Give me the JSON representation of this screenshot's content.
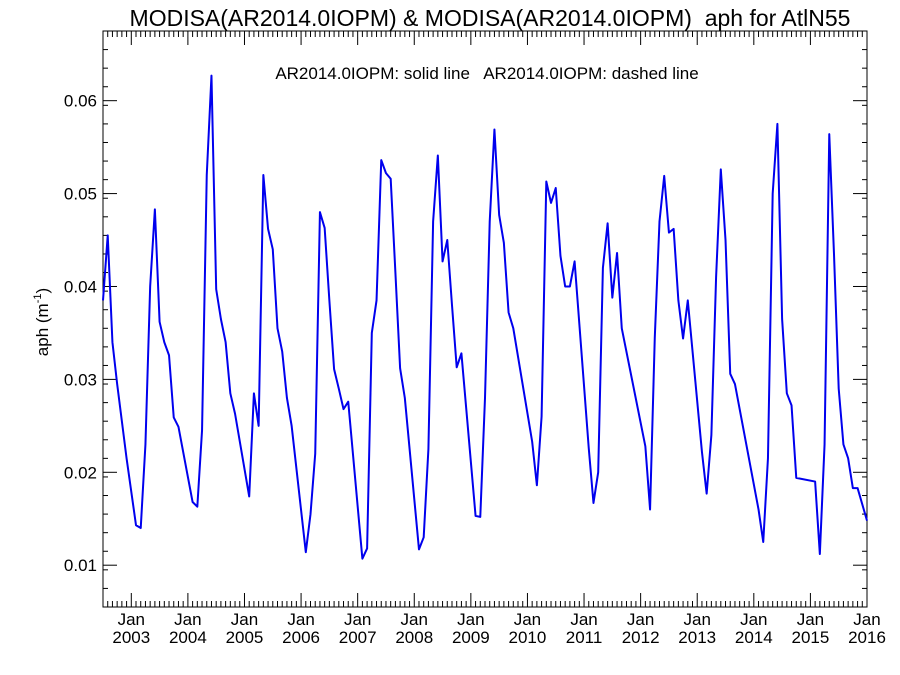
{
  "chart_data": {
    "type": "line",
    "title": "MODISA(AR2014.0IOPM) & MODISA(AR2014.0IOPM)  aph for AtlN55",
    "annotation": "AR2014.0IOPM: solid line   AR2014.0IOPM: dashed line",
    "ylabel": "aph (m",
    "ylabel_exponent": "-1",
    "ylabel_close": ")",
    "xlim": [
      "2002-07-01",
      "2016-01-01"
    ],
    "ylim": [
      0.0055,
      0.0675
    ],
    "yticks": [
      0.01,
      0.02,
      0.03,
      0.04,
      0.05,
      0.06
    ],
    "ytick_labels": [
      "0.01",
      "0.02",
      "0.03",
      "0.04",
      "0.05",
      "0.06"
    ],
    "xtick_month_label": "Jan",
    "xtick_year_labels": [
      "2003",
      "2004",
      "2005",
      "2006",
      "2007",
      "2008",
      "2009",
      "2010",
      "2011",
      "2012",
      "2013",
      "2014",
      "2015",
      "2016"
    ],
    "grid": false,
    "series_color": "#0000ee",
    "series": [
      {
        "name": "AR2014.0IOPM",
        "style": "solid",
        "points": [
          [
            "2002-07",
            0.0385
          ],
          [
            "2002-08",
            0.0455
          ],
          [
            "2002-09",
            0.034
          ],
          [
            "2002-10",
            0.0295
          ],
          [
            "2002-12",
            0.0215
          ],
          [
            "2003-02",
            0.0143
          ],
          [
            "2003-03",
            0.014
          ],
          [
            "2003-04",
            0.023
          ],
          [
            "2003-05",
            0.04
          ],
          [
            "2003-06",
            0.0483
          ],
          [
            "2003-07",
            0.0362
          ],
          [
            "2003-08",
            0.034
          ],
          [
            "2003-09",
            0.0326
          ],
          [
            "2003-10",
            0.0259
          ],
          [
            "2003-11",
            0.0249
          ],
          [
            "2004-02",
            0.0168
          ],
          [
            "2004-03",
            0.0163
          ],
          [
            "2004-04",
            0.0245
          ],
          [
            "2004-05",
            0.052
          ],
          [
            "2004-06",
            0.0627
          ],
          [
            "2004-07",
            0.0397
          ],
          [
            "2004-08",
            0.0365
          ],
          [
            "2004-09",
            0.034
          ],
          [
            "2004-10",
            0.0285
          ],
          [
            "2004-11",
            0.0263
          ],
          [
            "2005-02",
            0.0174
          ],
          [
            "2005-03",
            0.0285
          ],
          [
            "2005-04",
            0.025
          ],
          [
            "2005-05",
            0.052
          ],
          [
            "2005-06",
            0.0462
          ],
          [
            "2005-07",
            0.044
          ],
          [
            "2005-08",
            0.0355
          ],
          [
            "2005-09",
            0.033
          ],
          [
            "2005-10",
            0.028
          ],
          [
            "2005-11",
            0.025
          ],
          [
            "2006-02",
            0.0114
          ],
          [
            "2006-03",
            0.0155
          ],
          [
            "2006-04",
            0.022
          ],
          [
            "2006-05",
            0.048
          ],
          [
            "2006-06",
            0.0463
          ],
          [
            "2006-07",
            0.0385
          ],
          [
            "2006-08",
            0.0311
          ],
          [
            "2006-09",
            0.029
          ],
          [
            "2006-10",
            0.0268
          ],
          [
            "2006-11",
            0.0276
          ],
          [
            "2007-02",
            0.0107
          ],
          [
            "2007-03",
            0.0118
          ],
          [
            "2007-04",
            0.035
          ],
          [
            "2007-05",
            0.0385
          ],
          [
            "2007-06",
            0.0536
          ],
          [
            "2007-07",
            0.0522
          ],
          [
            "2007-08",
            0.0516
          ],
          [
            "2007-09",
            0.0415
          ],
          [
            "2007-10",
            0.0312
          ],
          [
            "2007-11",
            0.028
          ],
          [
            "2008-02",
            0.0117
          ],
          [
            "2008-03",
            0.013
          ],
          [
            "2008-04",
            0.0225
          ],
          [
            "2008-05",
            0.047
          ],
          [
            "2008-06",
            0.0541
          ],
          [
            "2008-07",
            0.0427
          ],
          [
            "2008-08",
            0.045
          ],
          [
            "2008-09",
            0.038
          ],
          [
            "2008-10",
            0.0313
          ],
          [
            "2008-11",
            0.0328
          ],
          [
            "2009-02",
            0.0153
          ],
          [
            "2009-03",
            0.0152
          ],
          [
            "2009-04",
            0.028
          ],
          [
            "2009-05",
            0.047
          ],
          [
            "2009-06",
            0.0569
          ],
          [
            "2009-07",
            0.0477
          ],
          [
            "2009-08",
            0.0447
          ],
          [
            "2009-09",
            0.0372
          ],
          [
            "2009-10",
            0.0355
          ],
          [
            "2010-02",
            0.0233
          ],
          [
            "2010-03",
            0.0186
          ],
          [
            "2010-04",
            0.026
          ],
          [
            "2010-05",
            0.0513
          ],
          [
            "2010-06",
            0.049
          ],
          [
            "2010-07",
            0.0506
          ],
          [
            "2010-08",
            0.0433
          ],
          [
            "2010-09",
            0.04
          ],
          [
            "2010-10",
            0.04
          ],
          [
            "2010-11",
            0.0427
          ],
          [
            "2011-02",
            0.0226
          ],
          [
            "2011-03",
            0.0167
          ],
          [
            "2011-04",
            0.02
          ],
          [
            "2011-05",
            0.042
          ],
          [
            "2011-06",
            0.0468
          ],
          [
            "2011-07",
            0.0388
          ],
          [
            "2011-08",
            0.0436
          ],
          [
            "2011-09",
            0.0355
          ],
          [
            "2012-02",
            0.0228
          ],
          [
            "2012-03",
            0.016
          ],
          [
            "2012-04",
            0.0345
          ],
          [
            "2012-05",
            0.047
          ],
          [
            "2012-06",
            0.0519
          ],
          [
            "2012-07",
            0.0458
          ],
          [
            "2012-08",
            0.0462
          ],
          [
            "2012-09",
            0.0385
          ],
          [
            "2012-10",
            0.0344
          ],
          [
            "2012-11",
            0.0385
          ],
          [
            "2013-02",
            0.0222
          ],
          [
            "2013-03",
            0.0177
          ],
          [
            "2013-04",
            0.024
          ],
          [
            "2013-05",
            0.041
          ],
          [
            "2013-06",
            0.0526
          ],
          [
            "2013-07",
            0.045
          ],
          [
            "2013-08",
            0.0306
          ],
          [
            "2013-09",
            0.0295
          ],
          [
            "2014-02",
            0.016
          ],
          [
            "2014-03",
            0.0125
          ],
          [
            "2014-04",
            0.0215
          ],
          [
            "2014-05",
            0.05
          ],
          [
            "2014-06",
            0.0575
          ],
          [
            "2014-07",
            0.0365
          ],
          [
            "2014-08",
            0.0285
          ],
          [
            "2014-09",
            0.0272
          ],
          [
            "2014-10",
            0.0194
          ],
          [
            "2015-02",
            0.019
          ],
          [
            "2015-03",
            0.0112
          ],
          [
            "2015-04",
            0.023
          ],
          [
            "2015-05",
            0.0564
          ],
          [
            "2015-06",
            0.0435
          ],
          [
            "2015-07",
            0.029
          ],
          [
            "2015-08",
            0.023
          ],
          [
            "2015-09",
            0.0215
          ],
          [
            "2015-10",
            0.0183
          ],
          [
            "2015-11",
            0.0183
          ],
          [
            "2016-01",
            0.0148
          ]
        ]
      }
    ]
  }
}
